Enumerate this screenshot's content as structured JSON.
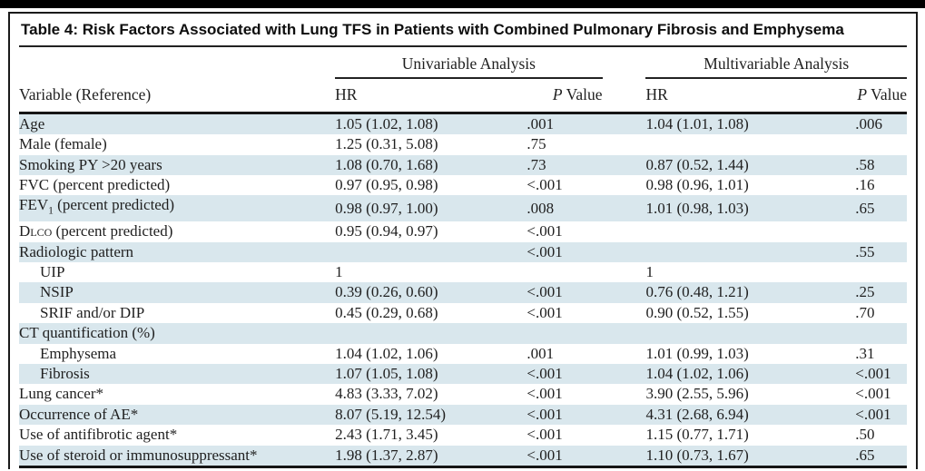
{
  "title": "Table 4: Risk Factors Associated with Lung TFS in Patients with Combined Pulmonary Fibrosis and Emphysema",
  "header": {
    "univariable": "Univariable Analysis",
    "multivariable": "Multivariable Analysis",
    "variable": "Variable (Reference)",
    "hr": "HR",
    "p_value": "P Value"
  },
  "colors": {
    "stripe": "#d9e7ed",
    "rule": "#1a1a1a",
    "text": "#1f1f1f"
  },
  "rows": [
    {
      "variable": "Age",
      "indent": false,
      "uni_hr": "1.05 (1.02, 1.08)",
      "uni_p": ".001",
      "multi_hr": "1.04 (1.01, 1.08)",
      "multi_p": ".006"
    },
    {
      "variable": "Male (female)",
      "indent": false,
      "uni_hr": "1.25 (0.31, 5.08)",
      "uni_p": ".75",
      "multi_hr": "",
      "multi_p": ""
    },
    {
      "variable": "Smoking PY >20 years",
      "indent": false,
      "uni_hr": "1.08 (0.70, 1.68)",
      "uni_p": ".73",
      "multi_hr": "0.87 (0.52, 1.44)",
      "multi_p": ".58"
    },
    {
      "variable": "FVC (percent predicted)",
      "indent": false,
      "uni_hr": "0.97 (0.95, 0.98)",
      "uni_p": "<.001",
      "multi_hr": "0.98 (0.96, 1.01)",
      "multi_p": ".16"
    },
    {
      "variable": "FEV1 (percent predicted)",
      "variable_parts": [
        {
          "text": "FEV"
        },
        {
          "text": "1",
          "style": "sub"
        },
        {
          "text": " (percent predicted)"
        }
      ],
      "indent": false,
      "uni_hr": "0.98 (0.97, 1.00)",
      "uni_p": ".008",
      "multi_hr": "1.01 (0.98, 1.03)",
      "multi_p": ".65"
    },
    {
      "variable": "DLco (percent predicted)",
      "variable_parts": [
        {
          "text": "D"
        },
        {
          "text": "lco",
          "style": "sc"
        },
        {
          "text": " (percent predicted)"
        }
      ],
      "indent": false,
      "uni_hr": "0.95 (0.94, 0.97)",
      "uni_p": "<.001",
      "multi_hr": "",
      "multi_p": ""
    },
    {
      "variable": "Radiologic pattern",
      "indent": false,
      "uni_hr": "",
      "uni_p": "<.001",
      "multi_hr": "",
      "multi_p": ".55"
    },
    {
      "variable": "UIP",
      "indent": true,
      "uni_hr": "1",
      "uni_p": "",
      "multi_hr": "1",
      "multi_p": ""
    },
    {
      "variable": "NSIP",
      "indent": true,
      "uni_hr": "0.39 (0.26, 0.60)",
      "uni_p": "<.001",
      "multi_hr": "0.76 (0.48, 1.21)",
      "multi_p": ".25"
    },
    {
      "variable": "SRIF and/or DIP",
      "indent": true,
      "uni_hr": "0.45 (0.29, 0.68)",
      "uni_p": "<.001",
      "multi_hr": "0.90 (0.52, 1.55)",
      "multi_p": ".70"
    },
    {
      "variable": "CT quantification (%)",
      "indent": false,
      "uni_hr": "",
      "uni_p": "",
      "multi_hr": "",
      "multi_p": ""
    },
    {
      "variable": "Emphysema",
      "indent": true,
      "uni_hr": "1.04 (1.02, 1.06)",
      "uni_p": ".001",
      "multi_hr": "1.01 (0.99, 1.03)",
      "multi_p": ".31"
    },
    {
      "variable": "Fibrosis",
      "indent": true,
      "uni_hr": "1.07 (1.05, 1.08)",
      "uni_p": "<.001",
      "multi_hr": "1.04 (1.02, 1.06)",
      "multi_p": "<.001"
    },
    {
      "variable": "Lung cancer*",
      "indent": false,
      "uni_hr": "4.83 (3.33, 7.02)",
      "uni_p": "<.001",
      "multi_hr": "3.90 (2.55, 5.96)",
      "multi_p": "<.001"
    },
    {
      "variable": "Occurrence of AE*",
      "indent": false,
      "uni_hr": "8.07 (5.19, 12.54)",
      "uni_p": "<.001",
      "multi_hr": "4.31 (2.68, 6.94)",
      "multi_p": "<.001"
    },
    {
      "variable": "Use of antifibrotic agent*",
      "indent": false,
      "uni_hr": "2.43 (1.71, 3.45)",
      "uni_p": "<.001",
      "multi_hr": "1.15 (0.77, 1.71)",
      "multi_p": ".50"
    },
    {
      "variable": "Use of steroid or immunosuppressant*",
      "indent": false,
      "uni_hr": "1.98 (1.37, 2.87)",
      "uni_p": "<.001",
      "multi_hr": "1.10 (0.73, 1.67)",
      "multi_p": ".65"
    }
  ]
}
